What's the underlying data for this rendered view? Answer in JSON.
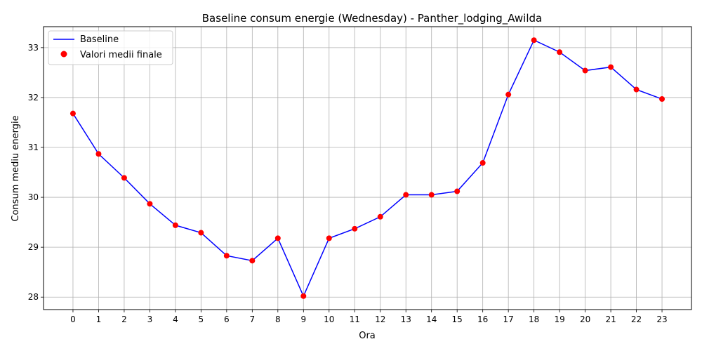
{
  "chart_data": {
    "type": "line",
    "title": "Baseline consum energie (Wednesday) - Panther_lodging_Awilda",
    "xlabel": "Ora",
    "ylabel": "Consum mediu energie",
    "x": [
      0,
      1,
      2,
      3,
      4,
      5,
      6,
      7,
      8,
      9,
      10,
      11,
      12,
      13,
      14,
      15,
      16,
      17,
      18,
      19,
      20,
      21,
      22,
      23
    ],
    "xticks": [
      "0",
      "1",
      "2",
      "3",
      "4",
      "5",
      "6",
      "7",
      "8",
      "9",
      "10",
      "11",
      "12",
      "13",
      "14",
      "15",
      "16",
      "17",
      "18",
      "19",
      "20",
      "21",
      "22",
      "23"
    ],
    "yticks": [
      "28",
      "29",
      "30",
      "31",
      "32",
      "33"
    ],
    "xlim": [
      -1.15,
      24.15
    ],
    "ylim": [
      27.75,
      33.42
    ],
    "grid": true,
    "legend_position": "top-left",
    "series": [
      {
        "name": "Baseline",
        "kind": "line",
        "color": "#0000ff",
        "values": [
          31.68,
          30.87,
          30.39,
          29.87,
          29.44,
          29.29,
          28.83,
          28.73,
          29.18,
          28.02,
          29.18,
          29.37,
          29.61,
          30.05,
          30.05,
          30.12,
          30.69,
          32.06,
          33.15,
          32.91,
          32.54,
          32.61,
          32.16,
          31.97
        ]
      },
      {
        "name": "Valori medii finale",
        "kind": "scatter",
        "color": "#ff0000",
        "values": [
          31.68,
          30.87,
          30.39,
          29.87,
          29.44,
          29.29,
          28.83,
          28.73,
          29.18,
          28.02,
          29.18,
          29.37,
          29.61,
          30.05,
          30.05,
          30.12,
          30.69,
          32.06,
          33.15,
          32.91,
          32.54,
          32.61,
          32.16,
          31.97
        ]
      }
    ]
  }
}
